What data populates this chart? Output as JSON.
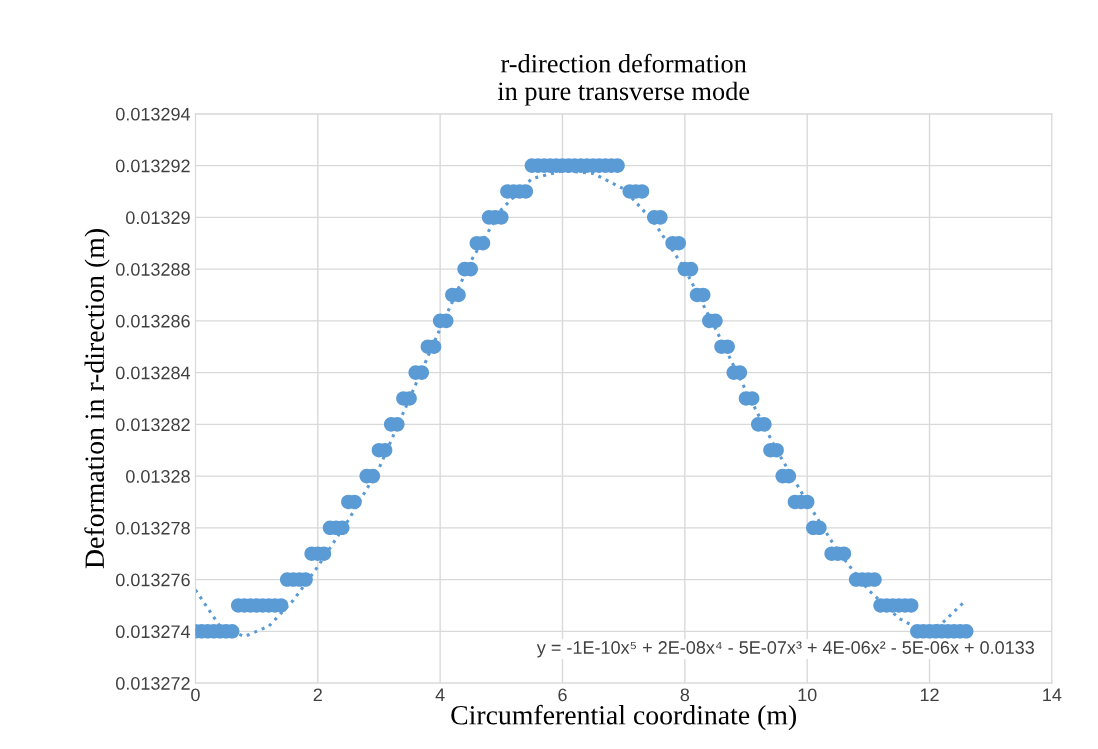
{
  "chart_data": {
    "type": "scatter",
    "title": "r-direction deformation\nin pure transverse mode",
    "xlabel": "Circumferential coordinate (m)",
    "ylabel": "Deformation in r-direction (m)",
    "xlim": [
      0,
      14
    ],
    "xticks": [
      0,
      2,
      4,
      6,
      8,
      10,
      12,
      14
    ],
    "ylim": [
      0.013272,
      0.013294
    ],
    "yticks": [
      0.013272,
      0.013274,
      0.013276,
      0.013278,
      0.01328,
      0.013282,
      0.013284,
      0.013286,
      0.013288,
      0.01329,
      0.013292,
      0.013294
    ],
    "grid": true,
    "marker": "circle",
    "annotations": [
      "y = -1E-10x⁵ + 2E-08x⁴ - 5E-07x³ + 4E-06x² - 5E-06x + 0.0133"
    ],
    "series": [
      {
        "color": "#5b9bd5",
        "x": [
          0,
          0.1,
          0.2,
          0.3,
          0.4,
          0.5,
          0.6,
          0.7,
          0.8,
          0.9,
          1.0,
          1.1,
          1.2,
          1.3,
          1.4,
          1.5,
          1.6,
          1.7,
          1.8,
          1.9,
          2.0,
          2.1,
          2.2,
          2.3,
          2.4,
          2.5,
          2.6,
          2.8,
          2.9,
          3.0,
          3.1,
          3.2,
          3.3,
          3.4,
          3.5,
          3.6,
          3.7,
          3.8,
          3.9,
          4.0,
          4.1,
          4.2,
          4.3,
          4.4,
          4.5,
          4.6,
          4.7,
          4.8,
          4.9,
          5.0,
          5.1,
          5.2,
          5.3,
          5.4,
          5.5,
          5.6,
          5.7,
          5.8,
          5.9,
          6.0,
          6.1,
          6.2,
          6.3,
          6.4,
          6.5,
          6.6,
          6.7,
          6.8,
          6.9,
          7.1,
          7.2,
          7.3,
          7.5,
          7.6,
          7.8,
          7.9,
          8.0,
          8.1,
          8.2,
          8.3,
          8.4,
          8.5,
          8.6,
          8.7,
          8.8,
          8.9,
          9.0,
          9.1,
          9.2,
          9.3,
          9.4,
          9.5,
          9.6,
          9.7,
          9.8,
          9.9,
          10.0,
          10.1,
          10.2,
          10.4,
          10.5,
          10.6,
          10.8,
          10.9,
          11.0,
          11.1,
          11.2,
          11.3,
          11.4,
          11.5,
          11.6,
          11.7,
          11.8,
          11.9,
          12.0,
          12.1,
          12.2,
          12.3,
          12.4,
          12.5,
          12.6
        ],
        "values": [
          0.013274,
          0.013274,
          0.013274,
          0.013274,
          0.013274,
          0.013274,
          0.013274,
          0.013275,
          0.013275,
          0.013275,
          0.013275,
          0.013275,
          0.013275,
          0.013275,
          0.013275,
          0.013276,
          0.013276,
          0.013276,
          0.013276,
          0.013277,
          0.013277,
          0.013277,
          0.013278,
          0.013278,
          0.013278,
          0.013279,
          0.013279,
          0.01328,
          0.01328,
          0.013281,
          0.013281,
          0.013282,
          0.013282,
          0.013283,
          0.013283,
          0.013284,
          0.013284,
          0.013285,
          0.013285,
          0.013286,
          0.013286,
          0.013287,
          0.013287,
          0.013288,
          0.013288,
          0.013289,
          0.013289,
          0.01329,
          0.01329,
          0.01329,
          0.013291,
          0.013291,
          0.013291,
          0.013291,
          0.013292,
          0.013292,
          0.013292,
          0.013292,
          0.013292,
          0.013292,
          0.013292,
          0.013292,
          0.013292,
          0.013292,
          0.013292,
          0.013292,
          0.013292,
          0.013292,
          0.013292,
          0.013291,
          0.013291,
          0.013291,
          0.01329,
          0.01329,
          0.013289,
          0.013289,
          0.013288,
          0.013288,
          0.013287,
          0.013287,
          0.013286,
          0.013286,
          0.013285,
          0.013285,
          0.013284,
          0.013284,
          0.013283,
          0.013283,
          0.013282,
          0.013282,
          0.013281,
          0.013281,
          0.01328,
          0.01328,
          0.013279,
          0.013279,
          0.013279,
          0.013278,
          0.013278,
          0.013277,
          0.013277,
          0.013277,
          0.013276,
          0.013276,
          0.013276,
          0.013276,
          0.013275,
          0.013275,
          0.013275,
          0.013275,
          0.013275,
          0.013275,
          0.013274,
          0.013274,
          0.013274,
          0.013274,
          0.013274,
          0.013274,
          0.013274,
          0.013274,
          0.013274
        ]
      },
      {
        "type": "line",
        "color": "#5b9bd5",
        "line_style": "dotted",
        "marker": "none",
        "x": [
          0,
          0.4,
          0.8,
          1.2,
          1.6,
          2,
          2.5,
          3,
          3.5,
          4,
          4.5,
          5,
          5.5,
          6,
          6.5,
          7,
          7.5,
          8,
          8.5,
          9,
          9.5,
          10,
          10.5,
          11,
          11.5,
          11.9,
          12.2,
          12.55
        ],
        "values": [
          0.0132756,
          0.0132742,
          0.0132738,
          0.0132742,
          0.0132752,
          0.0132765,
          0.0132783,
          0.0132803,
          0.013283,
          0.0132857,
          0.0132883,
          0.0132903,
          0.0132915,
          0.0132918,
          0.0132917,
          0.0132911,
          0.0132898,
          0.013288,
          0.0132857,
          0.0132833,
          0.013281,
          0.013279,
          0.0132771,
          0.0132756,
          0.0132745,
          0.013274,
          0.0132743,
          0.0132751
        ]
      }
    ]
  }
}
